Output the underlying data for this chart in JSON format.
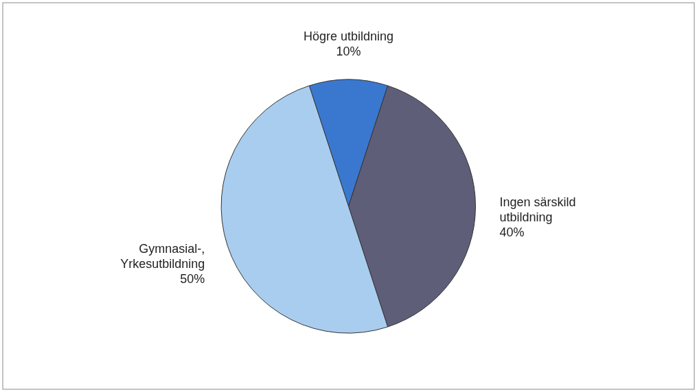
{
  "chart_data": {
    "type": "pie",
    "categories": [
      "Högre utbildning",
      "Ingen särskild utbildning",
      "Gymnasial-, Yrkesutbildning"
    ],
    "values": [
      10,
      40,
      50
    ],
    "colors": [
      "#3a78d0",
      "#5e5e78",
      "#a9cdee"
    ],
    "value_labels": [
      "10%",
      "40%",
      "50%"
    ]
  }
}
